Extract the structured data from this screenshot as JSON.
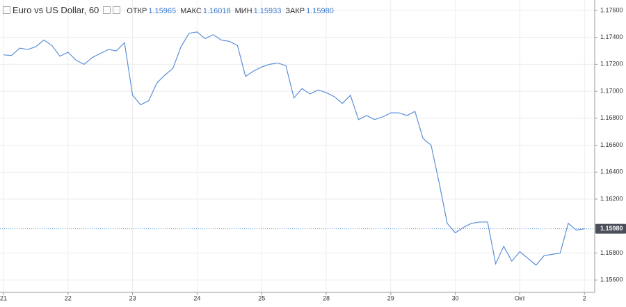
{
  "chart_data": {
    "type": "line",
    "title": "Euro vs US Dollar, 60",
    "stats": [
      {
        "name": "ОТКР",
        "value": 1.15965,
        "label": "1.15965"
      },
      {
        "name": "МАКС",
        "value": 1.16018,
        "label": "1.16018"
      },
      {
        "name": "МИН",
        "value": 1.15933,
        "label": "1.15933"
      },
      {
        "name": "ЗАКР",
        "value": 1.1598,
        "label": "1.15980"
      }
    ],
    "last_price": {
      "value": 1.1598,
      "label": "1.15980"
    },
    "categories": [
      "21",
      null,
      null,
      null,
      null,
      null,
      null,
      null,
      "22",
      null,
      null,
      null,
      null,
      null,
      null,
      null,
      "23",
      null,
      null,
      null,
      null,
      null,
      null,
      null,
      "24",
      null,
      null,
      null,
      null,
      null,
      null,
      null,
      "25",
      null,
      null,
      null,
      null,
      null,
      null,
      null,
      "28",
      null,
      null,
      null,
      null,
      null,
      null,
      null,
      "29",
      null,
      null,
      null,
      null,
      null,
      null,
      null,
      "30",
      null,
      null,
      null,
      null,
      null,
      null,
      null,
      "Окт",
      null,
      null,
      null,
      null,
      null,
      null,
      null,
      "2"
    ],
    "series": [
      {
        "name": "Euro vs US Dollar, 60",
        "color": "#5b8fd9",
        "values": [
          1.1727,
          1.17265,
          1.1732,
          1.1731,
          1.1733,
          1.1738,
          1.1734,
          1.1726,
          1.1729,
          1.1723,
          1.172,
          1.1725,
          1.1728,
          1.1731,
          1.173,
          1.1736,
          1.1697,
          1.169,
          1.1693,
          1.1706,
          1.1712,
          1.1717,
          1.1733,
          1.1743,
          1.1744,
          1.1739,
          1.1742,
          1.1738,
          1.1737,
          1.1734,
          1.1711,
          1.1715,
          1.1718,
          1.172,
          1.1721,
          1.1719,
          1.1695,
          1.1702,
          1.1698,
          1.1701,
          1.1699,
          1.1696,
          1.1691,
          1.1697,
          1.1679,
          1.1682,
          1.1679,
          1.1681,
          1.1684,
          1.1684,
          1.1682,
          1.1685,
          1.1665,
          1.166,
          1.1632,
          1.1602,
          1.1595,
          1.1599,
          1.1602,
          1.1603,
          1.1603,
          1.1572,
          1.1585,
          1.1574,
          1.1581,
          1.1576,
          1.1571,
          1.1578,
          1.1579,
          1.158,
          1.1602,
          1.1597,
          1.1598
        ]
      }
    ],
    "ylim": [
      1.15508,
      1.17677
    ],
    "yticks": [
      {
        "value": 1.176,
        "label": "1.17600"
      },
      {
        "value": 1.174,
        "label": "1.17400"
      },
      {
        "value": 1.172,
        "label": "1.17200"
      },
      {
        "value": 1.17,
        "label": "1.17000"
      },
      {
        "value": 1.168,
        "label": "1.16800"
      },
      {
        "value": 1.166,
        "label": "1.16600"
      },
      {
        "value": 1.164,
        "label": "1.16400"
      },
      {
        "value": 1.162,
        "label": "1.16200"
      },
      {
        "value": 1.158,
        "label": "1.15800"
      },
      {
        "value": 1.156,
        "label": "1.15600"
      }
    ],
    "grid": true
  }
}
